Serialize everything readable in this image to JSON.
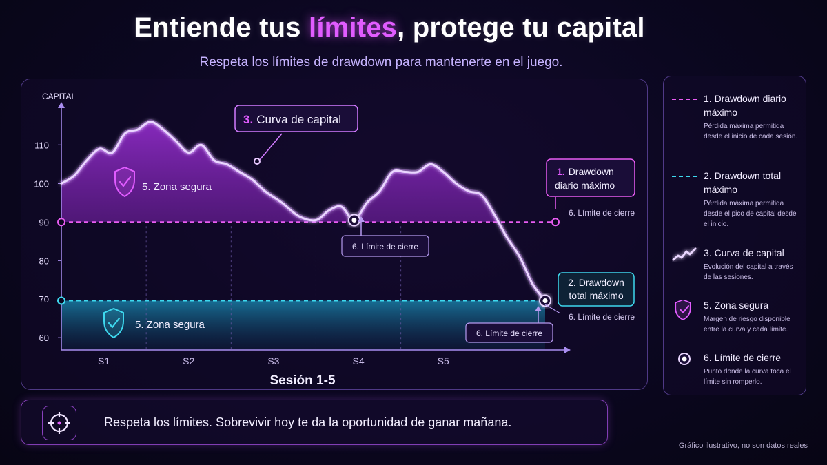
{
  "header": {
    "title_pre": "Entiende tus ",
    "title_highlight": "límites",
    "title_post": ", protege tu capital",
    "subtitle": "Respeta los límites de drawdown para mantenerte en el juego."
  },
  "colors": {
    "accent_pink": "#e15cff",
    "curve": "#d9a6ff",
    "daily_line": "#e85cf2",
    "total_line": "#3ed8ee",
    "background": "#0b0720"
  },
  "chart_data": {
    "type": "area",
    "ylabel": "CAPITAL",
    "xlabel": "Sesión 1-5",
    "categories": [
      "S1",
      "S2",
      "S3",
      "S4",
      "S5"
    ],
    "yticks": [
      60,
      70,
      80,
      90,
      100,
      110
    ],
    "ylim": [
      57,
      119
    ],
    "xlim": [
      0,
      5.7
    ],
    "grid": false,
    "series": [
      {
        "name": "3. Curva de capital",
        "x": [
          0,
          0.15,
          0.3,
          0.45,
          0.6,
          0.75,
          0.9,
          1.05,
          1.2,
          1.35,
          1.5,
          1.65,
          1.8,
          1.95,
          2.1,
          2.25,
          2.4,
          2.6,
          2.8,
          3.0,
          3.15,
          3.3,
          3.45,
          3.6,
          3.75,
          3.9,
          4.05,
          4.2,
          4.35,
          4.5,
          4.65,
          4.8,
          4.95,
          5.1,
          5.25,
          5.4,
          5.55,
          5.7
        ],
        "values": [
          100,
          102,
          106,
          109,
          108,
          113,
          114,
          116,
          114,
          111,
          108,
          110,
          106,
          105,
          103,
          101,
          98,
          95,
          91.5,
          90.5,
          93,
          94,
          90.5,
          95,
          98,
          103,
          103,
          103,
          105,
          103,
          100,
          98,
          97,
          92,
          86,
          81,
          74,
          69.6
        ]
      }
    ],
    "limits": [
      {
        "id": "daily",
        "value": 90,
        "label_num": "1.",
        "label": "Drawdown diario máximo",
        "tag": "6. Límite de cierre"
      },
      {
        "id": "total",
        "value": 69.6,
        "label_num": "2.",
        "label": "Drawdown total máximo",
        "tag": "6. Límite de cierre"
      }
    ],
    "touch_points": [
      {
        "x": 3.45,
        "y": 90.5,
        "label": "6. Límite de cierre"
      },
      {
        "x": 5.7,
        "y": 69.6,
        "label": "6. Límite de cierre"
      }
    ],
    "annotations": {
      "curve_callout_num": "3.",
      "curve_callout": "Curva de capital",
      "safe_zone": "5. Zona segura",
      "daily_box_num": "1.",
      "daily_box_line1": "Drawdown",
      "daily_box_line2": "diario máximo",
      "total_box_line1": "2. Drawdown",
      "total_box_line2": "total máximo",
      "close_limit": "6. Límite de cierre"
    }
  },
  "legend": [
    {
      "icon": "dashed-pink-line",
      "title": "1. Drawdown diario máximo",
      "desc": "Pérdida máxima permitida desde el inicio de cada sesión."
    },
    {
      "icon": "dashed-cyan-line",
      "title": "2. Drawdown total máximo",
      "desc": "Pérdida máxima permitida desde el pico de capital desde el inicio."
    },
    {
      "icon": "trend-line-icon",
      "title": "3. Curva de capital",
      "desc": "Evolución del capital a través de las sesiones."
    },
    {
      "icon": "shield-check-icon",
      "title": "5. Zona segura",
      "desc": "Margen de riesgo disponible entre la curva y cada límite."
    },
    {
      "icon": "target-dot-icon",
      "title": "6. Límite de cierre",
      "desc": "Punto donde la curva toca el límite sin romperlo."
    }
  ],
  "footer": {
    "icon": "crosshair-icon",
    "message": "Respeta los límites. Sobrevivir hoy te da la oportunidad de ganar mañana.",
    "note": "Gráfico ilustrativo, no son datos reales"
  }
}
